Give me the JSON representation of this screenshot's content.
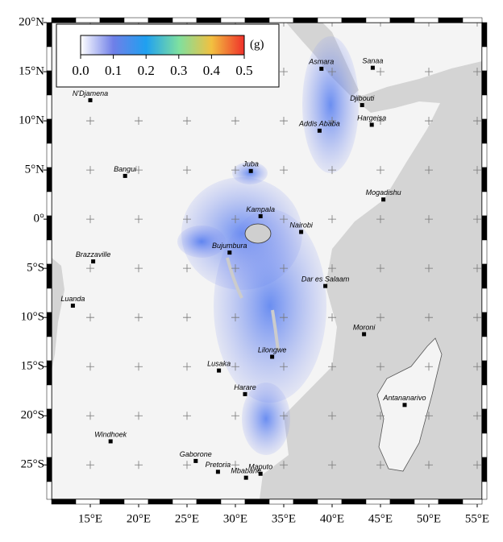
{
  "map": {
    "xlim": [
      11,
      55.5
    ],
    "ylim": [
      -28.5,
      20
    ],
    "xticks": [
      {
        "value": 15,
        "label": "15°E"
      },
      {
        "value": 20,
        "label": "20°E"
      },
      {
        "value": 25,
        "label": "25°E"
      },
      {
        "value": 30,
        "label": "30°E"
      },
      {
        "value": 35,
        "label": "35°E"
      },
      {
        "value": 40,
        "label": "40°E"
      },
      {
        "value": 45,
        "label": "45°E"
      },
      {
        "value": 50,
        "label": "50°E"
      },
      {
        "value": 55,
        "label": "55°E"
      }
    ],
    "yticks": [
      {
        "value": 20,
        "label": "20°N"
      },
      {
        "value": 15,
        "label": "15°N"
      },
      {
        "value": 10,
        "label": "10°N"
      },
      {
        "value": 5,
        "label": "5°N"
      },
      {
        "value": 0,
        "label": "0°"
      },
      {
        "value": -5,
        "label": "5°S"
      },
      {
        "value": -10,
        "label": "10°S"
      },
      {
        "value": -15,
        "label": "15°S"
      },
      {
        "value": -20,
        "label": "20°S"
      },
      {
        "value": -25,
        "label": "25°S"
      }
    ],
    "colorbar": {
      "unit": "(g)",
      "lim": [
        0,
        0.5
      ],
      "ticks": [
        {
          "value": 0,
          "label": "0.0"
        },
        {
          "value": 0.1,
          "label": "0.1"
        },
        {
          "value": 0.2,
          "label": "0.2"
        },
        {
          "value": 0.3,
          "label": "0.3"
        },
        {
          "value": 0.4,
          "label": "0.4"
        },
        {
          "value": 0.5,
          "label": "0.5"
        }
      ]
    },
    "cities": [
      {
        "name": "Asmara",
        "lon": 38.9,
        "lat": 15.3
      },
      {
        "name": "Sanaa",
        "lon": 44.2,
        "lat": 15.4
      },
      {
        "name": "N'Djamena",
        "lon": 15.0,
        "lat": 12.1
      },
      {
        "name": "Djibouti",
        "lon": 43.1,
        "lat": 11.6
      },
      {
        "name": "Addis Ababa",
        "lon": 38.7,
        "lat": 9.0
      },
      {
        "name": "Hargeisa",
        "lon": 44.1,
        "lat": 9.6
      },
      {
        "name": "Juba",
        "lon": 31.6,
        "lat": 4.9
      },
      {
        "name": "Bangui",
        "lon": 18.6,
        "lat": 4.4
      },
      {
        "name": "Mogadishu",
        "lon": 45.3,
        "lat": 2.0
      },
      {
        "name": "Kampala",
        "lon": 32.6,
        "lat": 0.3
      },
      {
        "name": "Nairobi",
        "lon": 36.8,
        "lat": -1.3
      },
      {
        "name": "Bujumbura",
        "lon": 29.4,
        "lat": -3.4
      },
      {
        "name": "Brazzaville",
        "lon": 15.3,
        "lat": -4.3
      },
      {
        "name": "Dar es Salaam",
        "lon": 39.3,
        "lat": -6.8
      },
      {
        "name": "Luanda",
        "lon": 13.2,
        "lat": -8.8
      },
      {
        "name": "Moroni",
        "lon": 43.3,
        "lat": -11.7
      },
      {
        "name": "Lilongwe",
        "lon": 33.8,
        "lat": -14.0
      },
      {
        "name": "Lusaka",
        "lon": 28.3,
        "lat": -15.4
      },
      {
        "name": "Harare",
        "lon": 31.0,
        "lat": -17.8
      },
      {
        "name": "Antananarivo",
        "lon": 47.5,
        "lat": -18.9
      },
      {
        "name": "Windhoek",
        "lon": 17.1,
        "lat": -22.6
      },
      {
        "name": "Gaborone",
        "lon": 25.9,
        "lat": -24.6
      },
      {
        "name": "Pretoria",
        "lon": 28.2,
        "lat": -25.7
      },
      {
        "name": "Maputo",
        "lon": 32.6,
        "lat": -25.9
      },
      {
        "name": "Mbabane",
        "lon": 31.1,
        "lat": -26.3
      }
    ]
  }
}
